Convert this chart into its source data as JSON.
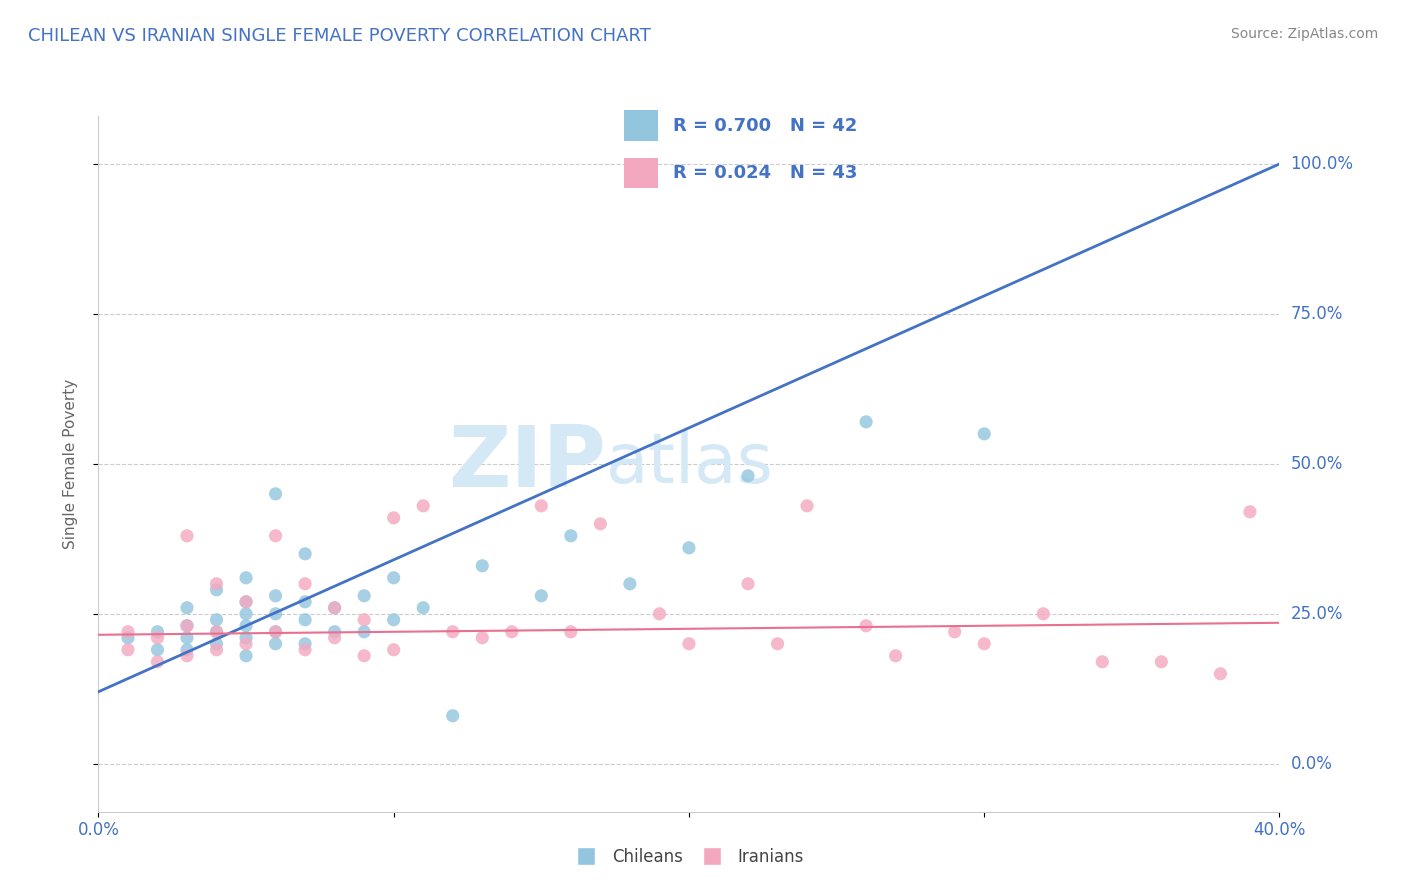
{
  "title": "CHILEAN VS IRANIAN SINGLE FEMALE POVERTY CORRELATION CHART",
  "source": "Source: ZipAtlas.com",
  "ylabel": "Single Female Poverty",
  "xlim": [
    0.0,
    0.4
  ],
  "ylim": [
    -0.08,
    1.08
  ],
  "ytick_labels": [
    "0.0%",
    "25.0%",
    "50.0%",
    "75.0%",
    "100.0%"
  ],
  "ytick_vals": [
    0.0,
    0.25,
    0.5,
    0.75,
    1.0
  ],
  "xtick_labels": [
    "0.0%",
    "",
    "",
    "",
    "40.0%"
  ],
  "xtick_vals": [
    0.0,
    0.1,
    0.2,
    0.3,
    0.4
  ],
  "legend_r_chilean": "R = 0.700",
  "legend_n_chilean": "N = 42",
  "legend_r_iranian": "R = 0.024",
  "legend_n_iranian": "N = 43",
  "chilean_color": "#92c5de",
  "iranian_color": "#f4a8c0",
  "line_chilean_color": "#4472c4",
  "line_iranian_color": "#e87090",
  "watermark_zip": "ZIP",
  "watermark_atlas": "atlas",
  "watermark_color": "#d5e8f5",
  "title_color": "#4472c4",
  "source_color": "#888888",
  "background_color": "#ffffff",
  "grid_color": "#cccccc",
  "tick_label_color": "#4472c4",
  "chilean_x": [
    0.01,
    0.02,
    0.02,
    0.03,
    0.03,
    0.03,
    0.03,
    0.04,
    0.04,
    0.04,
    0.04,
    0.05,
    0.05,
    0.05,
    0.05,
    0.05,
    0.05,
    0.06,
    0.06,
    0.06,
    0.06,
    0.06,
    0.07,
    0.07,
    0.07,
    0.07,
    0.08,
    0.08,
    0.09,
    0.09,
    0.1,
    0.1,
    0.11,
    0.12,
    0.13,
    0.15,
    0.16,
    0.18,
    0.2,
    0.22,
    0.26,
    0.3
  ],
  "chilean_y": [
    0.21,
    0.19,
    0.22,
    0.19,
    0.21,
    0.23,
    0.26,
    0.2,
    0.22,
    0.24,
    0.29,
    0.18,
    0.21,
    0.23,
    0.25,
    0.27,
    0.31,
    0.2,
    0.22,
    0.25,
    0.28,
    0.45,
    0.2,
    0.24,
    0.27,
    0.35,
    0.22,
    0.26,
    0.22,
    0.28,
    0.24,
    0.31,
    0.26,
    0.08,
    0.33,
    0.28,
    0.38,
    0.3,
    0.36,
    0.48,
    0.57,
    0.55
  ],
  "iranian_x": [
    0.01,
    0.01,
    0.02,
    0.02,
    0.03,
    0.03,
    0.03,
    0.04,
    0.04,
    0.04,
    0.05,
    0.05,
    0.06,
    0.06,
    0.07,
    0.07,
    0.08,
    0.08,
    0.09,
    0.09,
    0.1,
    0.1,
    0.11,
    0.12,
    0.13,
    0.14,
    0.15,
    0.16,
    0.17,
    0.19,
    0.2,
    0.22,
    0.23,
    0.24,
    0.26,
    0.27,
    0.29,
    0.3,
    0.32,
    0.34,
    0.36,
    0.38,
    0.39
  ],
  "iranian_y": [
    0.19,
    0.22,
    0.17,
    0.21,
    0.18,
    0.23,
    0.38,
    0.19,
    0.22,
    0.3,
    0.2,
    0.27,
    0.22,
    0.38,
    0.19,
    0.3,
    0.21,
    0.26,
    0.18,
    0.24,
    0.19,
    0.41,
    0.43,
    0.22,
    0.21,
    0.22,
    0.43,
    0.22,
    0.4,
    0.25,
    0.2,
    0.3,
    0.2,
    0.43,
    0.23,
    0.18,
    0.22,
    0.2,
    0.25,
    0.17,
    0.17,
    0.15,
    0.42
  ],
  "chilean_line_x": [
    0.0,
    0.4
  ],
  "chilean_line_y": [
    0.12,
    1.0
  ],
  "iranian_line_x": [
    0.0,
    0.4
  ],
  "iranian_line_y": [
    0.215,
    0.235
  ]
}
